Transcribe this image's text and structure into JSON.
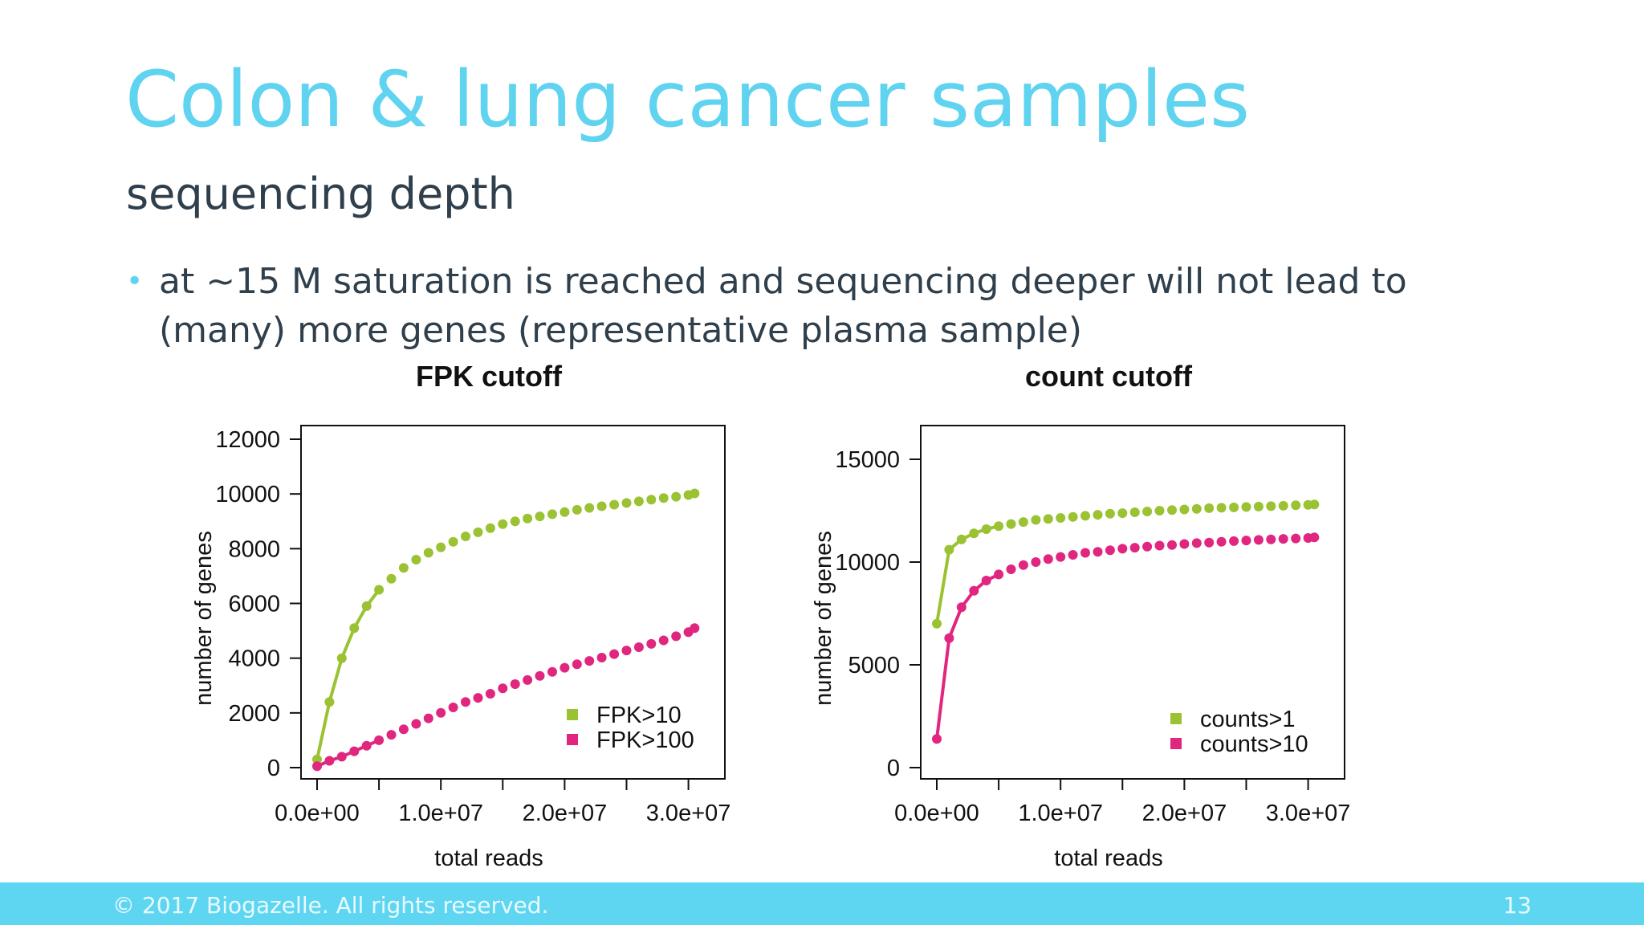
{
  "slide": {
    "title": "Colon & lung cancer samples",
    "subtitle": "sequencing depth",
    "bullet": "at ~15 M saturation is reached and sequencing deeper will not lead to (many) more genes (representative plasma sample)"
  },
  "footer": {
    "copyright": "© 2017 Biogazelle. All rights reserved.",
    "page": "13"
  },
  "colors": {
    "accent": "#5fd3ef",
    "green": "#9ac232",
    "magenta": "#e0267f",
    "text": "#2f3f4c"
  },
  "chart_data": [
    {
      "type": "scatter",
      "title": "FPK cutoff",
      "xlabel": "total reads",
      "ylabel": "number of genes",
      "xlim": [
        0,
        31000000
      ],
      "ylim": [
        0,
        12000
      ],
      "xticks": [
        0,
        5000000,
        10000000,
        15000000,
        20000000,
        25000000,
        30000000
      ],
      "xtick_labels": [
        "0.0e+00",
        "",
        "1.0e+07",
        "",
        "2.0e+07",
        "",
        "3.0e+07"
      ],
      "yticks": [
        0,
        2000,
        4000,
        6000,
        8000,
        10000,
        12000
      ],
      "ytick_labels": [
        "0",
        "2000",
        "4000",
        "6000",
        "8000",
        "10000",
        "12000"
      ],
      "legend_position": "bottom-right",
      "grid": false,
      "series": [
        {
          "name": "FPK>10",
          "color": "#9ac232",
          "x": [
            0,
            1000000,
            2000000,
            3000000,
            4000000,
            5000000,
            6000000,
            7000000,
            8000000,
            9000000,
            10000000,
            11000000,
            12000000,
            13000000,
            14000000,
            15000000,
            16000000,
            17000000,
            18000000,
            19000000,
            20000000,
            21000000,
            22000000,
            23000000,
            24000000,
            25000000,
            26000000,
            27000000,
            28000000,
            29000000,
            30000000,
            30500000
          ],
          "y": [
            300,
            2400,
            4000,
            5100,
            5900,
            6500,
            6900,
            7300,
            7600,
            7850,
            8050,
            8250,
            8450,
            8600,
            8750,
            8900,
            9000,
            9100,
            9180,
            9260,
            9340,
            9420,
            9490,
            9550,
            9610,
            9670,
            9730,
            9790,
            9850,
            9900,
            9960,
            10020
          ]
        },
        {
          "name": "FPK>100",
          "color": "#e0267f",
          "x": [
            0,
            1000000,
            2000000,
            3000000,
            4000000,
            5000000,
            6000000,
            7000000,
            8000000,
            9000000,
            10000000,
            11000000,
            12000000,
            13000000,
            14000000,
            15000000,
            16000000,
            17000000,
            18000000,
            19000000,
            20000000,
            21000000,
            22000000,
            23000000,
            24000000,
            25000000,
            26000000,
            27000000,
            28000000,
            29000000,
            30000000,
            30500000
          ],
          "y": [
            50,
            250,
            400,
            600,
            800,
            1000,
            1200,
            1400,
            1600,
            1800,
            2000,
            2200,
            2400,
            2550,
            2700,
            2900,
            3050,
            3200,
            3350,
            3500,
            3650,
            3780,
            3900,
            4020,
            4150,
            4280,
            4400,
            4520,
            4650,
            4800,
            4950,
            5100
          ]
        }
      ]
    },
    {
      "type": "scatter",
      "title": "count cutoff",
      "xlabel": "total reads",
      "ylabel": "number of genes",
      "xlim": [
        0,
        31000000
      ],
      "ylim": [
        0,
        15000
      ],
      "xticks": [
        0,
        5000000,
        10000000,
        15000000,
        20000000,
        25000000,
        30000000
      ],
      "xtick_labels": [
        "0.0e+00",
        "",
        "1.0e+07",
        "",
        "2.0e+07",
        "",
        "3.0e+07"
      ],
      "yticks": [
        0,
        5000,
        10000,
        15000
      ],
      "ytick_labels": [
        "0",
        "5000",
        "10000",
        "15000"
      ],
      "legend_position": "bottom-right",
      "grid": false,
      "series": [
        {
          "name": "counts>1",
          "color": "#9ac232",
          "x": [
            0,
            1000000,
            2000000,
            3000000,
            4000000,
            5000000,
            6000000,
            7000000,
            8000000,
            9000000,
            10000000,
            11000000,
            12000000,
            13000000,
            14000000,
            15000000,
            16000000,
            17000000,
            18000000,
            19000000,
            20000000,
            21000000,
            22000000,
            23000000,
            24000000,
            25000000,
            26000000,
            27000000,
            28000000,
            29000000,
            30000000,
            30500000
          ],
          "y": [
            7000,
            10600,
            11100,
            11400,
            11600,
            11750,
            11850,
            11950,
            12050,
            12100,
            12150,
            12200,
            12250,
            12300,
            12350,
            12380,
            12420,
            12460,
            12500,
            12530,
            12560,
            12590,
            12620,
            12640,
            12660,
            12680,
            12700,
            12720,
            12740,
            12760,
            12780,
            12800
          ]
        },
        {
          "name": "counts>10",
          "color": "#e0267f",
          "x": [
            0,
            1000000,
            2000000,
            3000000,
            4000000,
            5000000,
            6000000,
            7000000,
            8000000,
            9000000,
            10000000,
            11000000,
            12000000,
            13000000,
            14000000,
            15000000,
            16000000,
            17000000,
            18000000,
            19000000,
            20000000,
            21000000,
            22000000,
            23000000,
            24000000,
            25000000,
            26000000,
            27000000,
            28000000,
            29000000,
            30000000,
            30500000
          ],
          "y": [
            1400,
            6300,
            7800,
            8600,
            9100,
            9400,
            9650,
            9850,
            10000,
            10150,
            10250,
            10350,
            10450,
            10500,
            10580,
            10650,
            10700,
            10750,
            10800,
            10830,
            10880,
            10920,
            10950,
            10990,
            11020,
            11050,
            11080,
            11100,
            11130,
            11150,
            11170,
            11200
          ]
        }
      ]
    }
  ]
}
